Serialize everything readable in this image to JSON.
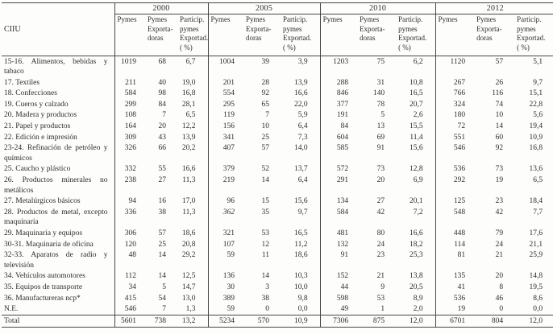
{
  "table": {
    "corner_label": "CIIU",
    "years": [
      "2000",
      "2005",
      "2010",
      "2012"
    ],
    "subheaders": [
      "Pymes",
      "Pymes\nExporta-\ndoras",
      "Particip.\npymes\nExportad.\n( %)"
    ],
    "rows": [
      {
        "label": "15-16. Alimentos, bebidas y tabaco",
        "cells": [
          "1019",
          "68",
          "6,7",
          "1004",
          "39",
          "3,9",
          "1203",
          "75",
          "6,2",
          "1120",
          "57",
          "5,1"
        ]
      },
      {
        "label": "17. Textiles",
        "cells": [
          "211",
          "40",
          "19,0",
          "201",
          "28",
          "13,9",
          "288",
          "31",
          "10,8",
          "267",
          "26",
          "9,7"
        ]
      },
      {
        "label": "18. Confecciones",
        "cells": [
          "584",
          "98",
          "16,8",
          "554",
          "92",
          "16,6",
          "846",
          "140",
          "16,5",
          "766",
          "116",
          "15,1"
        ]
      },
      {
        "label": "19. Cueros y calzado",
        "cells": [
          "299",
          "84",
          "28,1",
          "295",
          "65",
          "22,0",
          "377",
          "78",
          "20,7",
          "324",
          "74",
          "22,8"
        ]
      },
      {
        "label": "20. Madera y productos",
        "cells": [
          "108",
          "7",
          "6,5",
          "119",
          "7",
          "5,9",
          "191",
          "5",
          "2,6",
          "180",
          "10",
          "5,6"
        ]
      },
      {
        "label": "21. Papel y productos",
        "cells": [
          "164",
          "20",
          "12,2",
          "156",
          "10",
          "6,4",
          "84",
          "13",
          "15,5",
          "72",
          "14",
          "19,4"
        ]
      },
      {
        "label": "22. Edición e impresión",
        "cells": [
          "309",
          "43",
          "13,9",
          "341",
          "25",
          "7,3",
          "604",
          "69",
          "11,4",
          "551",
          "60",
          "10,9"
        ]
      },
      {
        "label": "23-24. Refinación de petróleo y químicos",
        "cells": [
          "326",
          "66",
          "20,2",
          "407",
          "57",
          "14,0",
          "585",
          "91",
          "15,6",
          "546",
          "92",
          "16,8"
        ]
      },
      {
        "label": "25. Caucho y plástico",
        "cells": [
          "332",
          "55",
          "16,6",
          "379",
          "52",
          "13,7",
          "572",
          "73",
          "12,8",
          "536",
          "73",
          "13,6"
        ]
      },
      {
        "label": "26. Productos minerales no metálicos",
        "cells": [
          "238",
          "27",
          "11,3",
          "219",
          "14",
          "6,4",
          "291",
          "20",
          "6,9",
          "292",
          "19",
          "6,5"
        ]
      },
      {
        "label": "27. Metalúrgicos básicos",
        "cells": [
          "94",
          "16",
          "17,0",
          "96",
          "15",
          "15,6",
          "134",
          "27",
          "20,1",
          "125",
          "23",
          "18,4"
        ]
      },
      {
        "label": "28. Productos de metal, excepto maquinaria",
        "cells": [
          "336",
          "38",
          "11,3",
          "362",
          "35",
          "9,7",
          "584",
          "42",
          "7,2",
          "548",
          "42",
          "7,7"
        ],
        "italic_cells": [
          3
        ]
      },
      {
        "label": "29. Maquinaria y equipos",
        "cells": [
          "306",
          "57",
          "18,6",
          "321",
          "53",
          "16,5",
          "481",
          "80",
          "16,6",
          "448",
          "79",
          "17,6"
        ]
      },
      {
        "label": "30-31. Maquinaria de oficina",
        "cells": [
          "120",
          "25",
          "20,8",
          "107",
          "12",
          "11,2",
          "132",
          "24",
          "18,2",
          "114",
          "24",
          "21,1"
        ]
      },
      {
        "label": "32-33. Aparatos de radio y televisión",
        "cells": [
          "48",
          "14",
          "29,2",
          "59",
          "11",
          "18,6",
          "91",
          "23",
          "25,3",
          "81",
          "21",
          "25,9"
        ]
      },
      {
        "label": "34. Vehículos automotores",
        "cells": [
          "112",
          "14",
          "12,5",
          "136",
          "14",
          "10,3",
          "152",
          "21",
          "13,8",
          "135",
          "20",
          "14,8"
        ]
      },
      {
        "label": "35. Equipos de transporte",
        "cells": [
          "34",
          "5",
          "14,7",
          "30",
          "3",
          "10,0",
          "44",
          "9",
          "20,5",
          "41",
          "8",
          "19,5"
        ]
      },
      {
        "label": "36. Manufactureras ncp*",
        "cells": [
          "415",
          "54",
          "13,0",
          "389",
          "38",
          "9,8",
          "598",
          "53",
          "8,9",
          "536",
          "46",
          "8,6"
        ]
      },
      {
        "label": "N.E.",
        "cells": [
          "546",
          "7",
          "1,3",
          "59",
          "0",
          "0,0",
          "49",
          "1",
          "2,0",
          "19",
          "0",
          "0,0"
        ]
      },
      {
        "label": "Total",
        "cells": [
          "5601",
          "738",
          "13,2",
          "5234",
          "570",
          "10,9",
          "7306",
          "875",
          "12,0",
          "6701",
          "804",
          "12,0"
        ],
        "is_total": true
      }
    ]
  }
}
